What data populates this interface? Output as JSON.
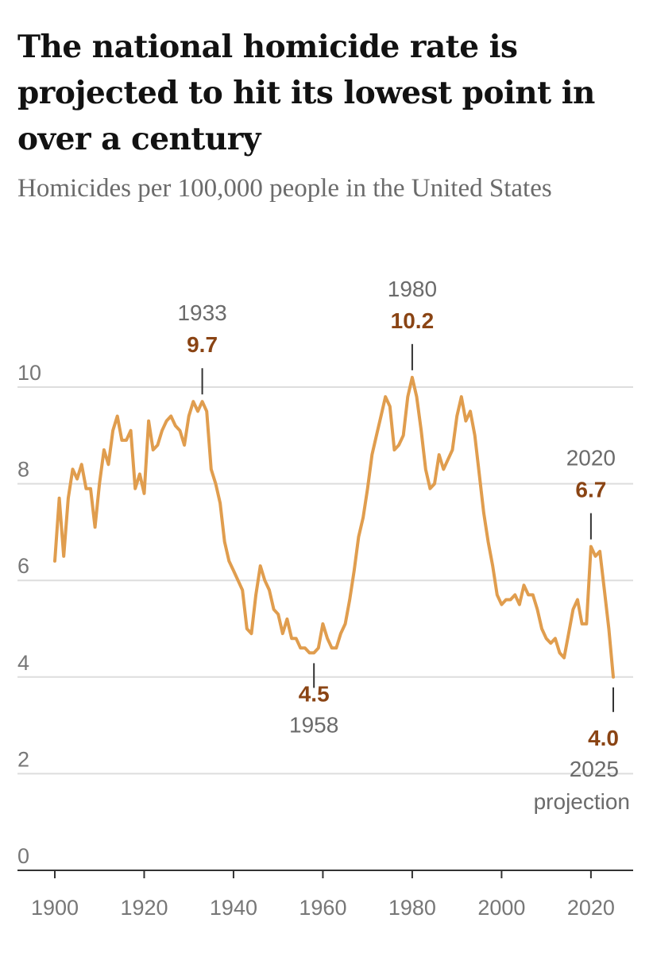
{
  "title": "The national homicide rate is projected to hit its lowest point in over a century",
  "subtitle": "Homicides per 100,000 people in the United States",
  "colors": {
    "line": "#e09d4e",
    "value_text": "#8a4414",
    "grid": "#dddddd",
    "axis": "#333333"
  },
  "chart_data": {
    "type": "line",
    "title": "The national homicide rate is projected to hit its lowest point in over a century",
    "ylabel": "Homicides per 100,000 people in the United States",
    "xlabel": "",
    "xlim": [
      1900,
      2025
    ],
    "ylim": [
      0,
      10
    ],
    "x_ticks": [
      1900,
      1920,
      1940,
      1960,
      1980,
      2000,
      2020
    ],
    "y_ticks": [
      0,
      2,
      4,
      6,
      8,
      10
    ],
    "x": [
      1900,
      1901,
      1902,
      1903,
      1904,
      1905,
      1906,
      1907,
      1908,
      1909,
      1910,
      1911,
      1912,
      1913,
      1914,
      1915,
      1916,
      1917,
      1918,
      1919,
      1920,
      1921,
      1922,
      1923,
      1924,
      1925,
      1926,
      1927,
      1928,
      1929,
      1930,
      1931,
      1932,
      1933,
      1934,
      1935,
      1936,
      1937,
      1938,
      1939,
      1940,
      1941,
      1942,
      1943,
      1944,
      1945,
      1946,
      1947,
      1948,
      1949,
      1950,
      1951,
      1952,
      1953,
      1954,
      1955,
      1956,
      1957,
      1958,
      1959,
      1960,
      1961,
      1962,
      1963,
      1964,
      1965,
      1966,
      1967,
      1968,
      1969,
      1970,
      1971,
      1972,
      1973,
      1974,
      1975,
      1976,
      1977,
      1978,
      1979,
      1980,
      1981,
      1982,
      1983,
      1984,
      1985,
      1986,
      1987,
      1988,
      1989,
      1990,
      1991,
      1992,
      1993,
      1994,
      1995,
      1996,
      1997,
      1998,
      1999,
      2000,
      2001,
      2002,
      2003,
      2004,
      2005,
      2006,
      2007,
      2008,
      2009,
      2010,
      2011,
      2012,
      2013,
      2014,
      2015,
      2016,
      2017,
      2018,
      2019,
      2020,
      2021,
      2022,
      2023,
      2024,
      2025
    ],
    "series": [
      {
        "name": "Homicide rate",
        "values": [
          6.4,
          7.7,
          6.5,
          7.7,
          8.3,
          8.1,
          8.4,
          7.9,
          7.9,
          7.1,
          8.0,
          8.7,
          8.4,
          9.1,
          9.4,
          8.9,
          8.9,
          9.1,
          7.9,
          8.2,
          7.8,
          9.3,
          8.7,
          8.8,
          9.1,
          9.3,
          9.4,
          9.2,
          9.1,
          8.8,
          9.4,
          9.7,
          9.5,
          9.7,
          9.5,
          8.3,
          8.0,
          7.6,
          6.8,
          6.4,
          6.2,
          6.0,
          5.8,
          5.0,
          4.9,
          5.7,
          6.3,
          6.0,
          5.8,
          5.4,
          5.3,
          4.9,
          5.2,
          4.8,
          4.8,
          4.6,
          4.6,
          4.5,
          4.5,
          4.6,
          5.1,
          4.8,
          4.6,
          4.6,
          4.9,
          5.1,
          5.6,
          6.2,
          6.9,
          7.3,
          7.9,
          8.6,
          9.0,
          9.4,
          9.8,
          9.6,
          8.7,
          8.8,
          9.0,
          9.8,
          10.2,
          9.8,
          9.1,
          8.3,
          7.9,
          8.0,
          8.6,
          8.3,
          8.5,
          8.7,
          9.4,
          9.8,
          9.3,
          9.5,
          9.0,
          8.2,
          7.4,
          6.8,
          6.3,
          5.7,
          5.5,
          5.6,
          5.6,
          5.7,
          5.5,
          5.9,
          5.7,
          5.7,
          5.4,
          5.0,
          4.8,
          4.7,
          4.8,
          4.5,
          4.4,
          4.9,
          5.4,
          5.6,
          5.1,
          5.1,
          6.7,
          6.5,
          6.6,
          5.8,
          5.0,
          4.0
        ]
      }
    ],
    "annotations": [
      {
        "year_label": "1933",
        "value_label": "9.7",
        "x": 1933,
        "y": 9.7,
        "position": "above"
      },
      {
        "year_label": "1980",
        "value_label": "10.2",
        "x": 1980,
        "y": 10.2,
        "position": "above"
      },
      {
        "year_label": "1958",
        "value_label": "4.5",
        "x": 1958,
        "y": 4.5,
        "position": "below"
      },
      {
        "year_label": "2020",
        "value_label": "6.7",
        "x": 2020,
        "y": 6.7,
        "position": "above"
      },
      {
        "year_label": "2025",
        "value_label": "4.0",
        "note": "projection",
        "x": 2025,
        "y": 4.0,
        "position": "below"
      }
    ]
  }
}
